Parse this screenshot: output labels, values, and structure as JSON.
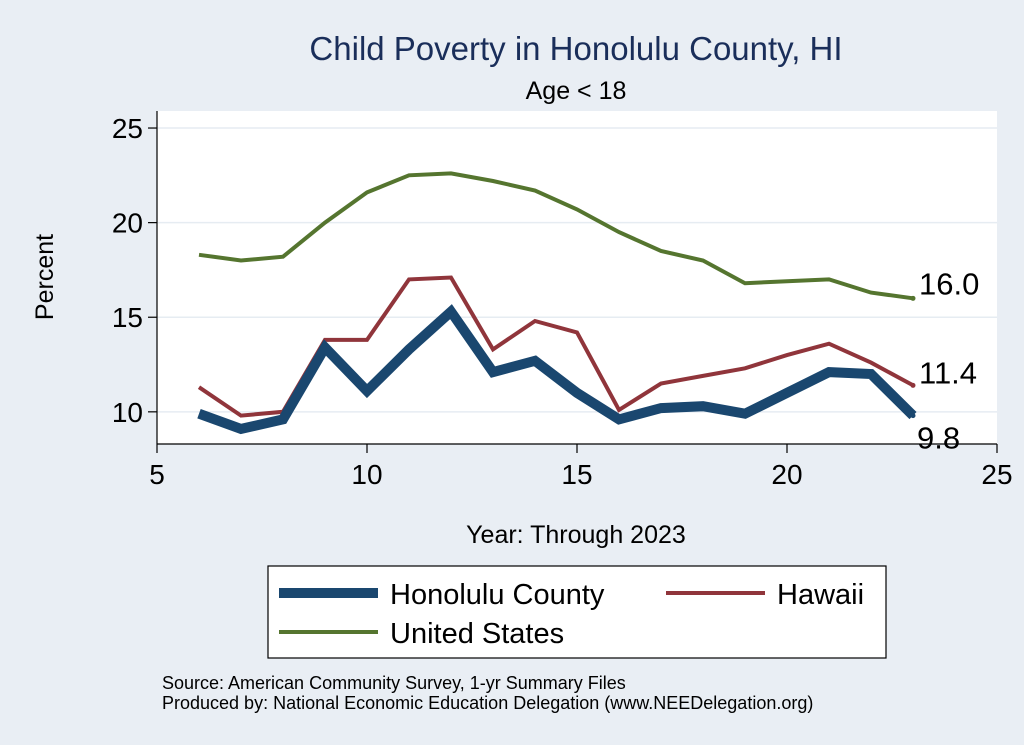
{
  "chart_data": {
    "type": "line",
    "title": "Child Poverty in Honolulu County, HI",
    "subtitle": "Age < 18",
    "xlabel": "Year: Through 2023",
    "ylabel": "Percent",
    "xlim": [
      5,
      25
    ],
    "ylim": [
      8.3,
      25.9
    ],
    "xticks": [
      5,
      10,
      15,
      20,
      25
    ],
    "yticks": [
      10,
      15,
      20,
      25
    ],
    "grid": true,
    "legend_position": "bottom",
    "x": [
      6,
      7,
      8,
      9,
      10,
      11,
      12,
      13,
      14,
      15,
      16,
      17,
      18,
      19,
      20,
      21,
      22,
      23
    ],
    "series": [
      {
        "name": "Honolulu County",
        "color": "#1a476f",
        "values": [
          9.9,
          9.1,
          9.6,
          13.4,
          11.1,
          13.3,
          15.3,
          12.1,
          12.7,
          11.0,
          9.6,
          10.2,
          10.3,
          9.9,
          11.0,
          12.1,
          12.0,
          9.8
        ],
        "end_label": "9.8"
      },
      {
        "name": "Hawaii",
        "color": "#90353b",
        "values": [
          11.3,
          9.8,
          10.0,
          13.8,
          13.8,
          17.0,
          17.1,
          13.3,
          14.8,
          14.2,
          10.1,
          11.5,
          11.9,
          12.3,
          13.0,
          13.6,
          12.6,
          11.4
        ],
        "end_label": "11.4"
      },
      {
        "name": "United States",
        "color": "#55752f",
        "values": [
          18.3,
          18.0,
          18.2,
          20.0,
          21.6,
          22.5,
          22.6,
          22.2,
          21.7,
          20.7,
          19.5,
          18.5,
          18.0,
          16.8,
          16.9,
          17.0,
          16.3,
          16.0
        ],
        "end_label": "16.0"
      }
    ],
    "source_lines": [
      "Source: American Community Survey, 1-yr Summary Files",
      "Produced by: National Economic Education Delegation (www.NEEDelegation.org)"
    ]
  }
}
